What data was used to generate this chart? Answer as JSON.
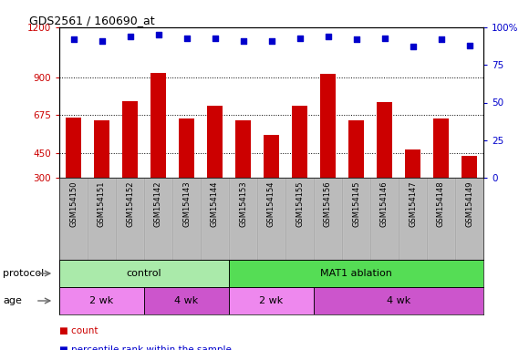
{
  "title": "GDS2561 / 160690_at",
  "samples": [
    "GSM154150",
    "GSM154151",
    "GSM154152",
    "GSM154142",
    "GSM154143",
    "GSM154144",
    "GSM154153",
    "GSM154154",
    "GSM154155",
    "GSM154156",
    "GSM154145",
    "GSM154146",
    "GSM154147",
    "GSM154148",
    "GSM154149"
  ],
  "counts": [
    660,
    645,
    760,
    930,
    655,
    730,
    645,
    555,
    730,
    920,
    645,
    755,
    470,
    655,
    430
  ],
  "percentile": [
    92,
    91,
    94,
    95,
    93,
    93,
    91,
    91,
    93,
    94,
    92,
    93,
    87,
    92,
    88
  ],
  "bar_color": "#cc0000",
  "dot_color": "#0000cc",
  "ylim_left": [
    300,
    1200
  ],
  "ylim_right": [
    0,
    100
  ],
  "yticks_left": [
    300,
    450,
    675,
    900,
    1200
  ],
  "ytick_labels_left": [
    "300",
    "450",
    "675",
    "900",
    "1200"
  ],
  "yticks_right": [
    0,
    25,
    50,
    75,
    100
  ],
  "ytick_labels_right": [
    "0",
    "25",
    "50",
    "75",
    "100%"
  ],
  "hlines": [
    450,
    675,
    900
  ],
  "protocol_groups": [
    {
      "label": "control",
      "start": 0,
      "end": 6,
      "color": "#aaeaaa"
    },
    {
      "label": "MAT1 ablation",
      "start": 6,
      "end": 15,
      "color": "#55dd55"
    }
  ],
  "age_groups": [
    {
      "label": "2 wk",
      "start": 0,
      "end": 3,
      "color": "#ee88ee"
    },
    {
      "label": "4 wk",
      "start": 3,
      "end": 6,
      "color": "#cc55cc"
    },
    {
      "label": "2 wk",
      "start": 6,
      "end": 9,
      "color": "#ee88ee"
    },
    {
      "label": "4 wk",
      "start": 9,
      "end": 15,
      "color": "#cc55cc"
    }
  ],
  "legend_count_color": "#cc0000",
  "legend_dot_color": "#0000cc",
  "xticklabel_bg": "#bbbbbb",
  "protocol_row_label": "protocol",
  "age_row_label": "age",
  "figsize": [
    5.8,
    3.84
  ],
  "dpi": 100
}
